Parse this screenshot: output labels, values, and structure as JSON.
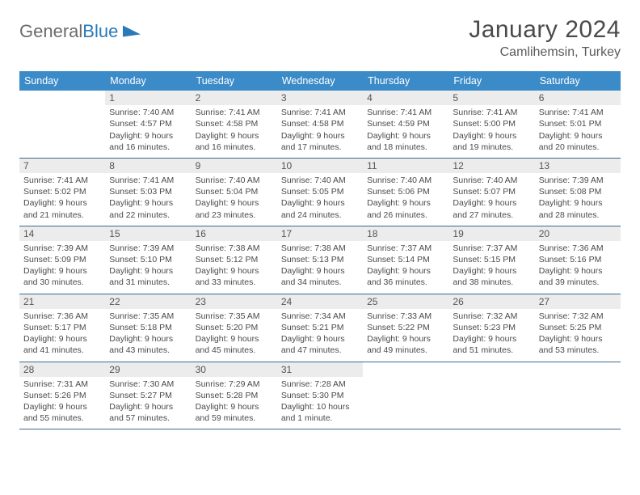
{
  "logo": {
    "word1": "General",
    "word2": "Blue"
  },
  "title": "January 2024",
  "subtitle": "Camlihemsin, Turkey",
  "colors": {
    "header_bg": "#3b8bc8",
    "header_text": "#ffffff",
    "row_border": "#3b6a8f",
    "daynum_bg": "#ececec",
    "text": "#4a4a4a",
    "logo_gray": "#6b6b6b",
    "logo_blue": "#2a7ab9"
  },
  "weekdays": [
    "Sunday",
    "Monday",
    "Tuesday",
    "Wednesday",
    "Thursday",
    "Friday",
    "Saturday"
  ],
  "weeks": [
    [
      {
        "n": "",
        "lines": []
      },
      {
        "n": "1",
        "lines": [
          "Sunrise: 7:40 AM",
          "Sunset: 4:57 PM",
          "Daylight: 9 hours and 16 minutes."
        ]
      },
      {
        "n": "2",
        "lines": [
          "Sunrise: 7:41 AM",
          "Sunset: 4:58 PM",
          "Daylight: 9 hours and 16 minutes."
        ]
      },
      {
        "n": "3",
        "lines": [
          "Sunrise: 7:41 AM",
          "Sunset: 4:58 PM",
          "Daylight: 9 hours and 17 minutes."
        ]
      },
      {
        "n": "4",
        "lines": [
          "Sunrise: 7:41 AM",
          "Sunset: 4:59 PM",
          "Daylight: 9 hours and 18 minutes."
        ]
      },
      {
        "n": "5",
        "lines": [
          "Sunrise: 7:41 AM",
          "Sunset: 5:00 PM",
          "Daylight: 9 hours and 19 minutes."
        ]
      },
      {
        "n": "6",
        "lines": [
          "Sunrise: 7:41 AM",
          "Sunset: 5:01 PM",
          "Daylight: 9 hours and 20 minutes."
        ]
      }
    ],
    [
      {
        "n": "7",
        "lines": [
          "Sunrise: 7:41 AM",
          "Sunset: 5:02 PM",
          "Daylight: 9 hours and 21 minutes."
        ]
      },
      {
        "n": "8",
        "lines": [
          "Sunrise: 7:41 AM",
          "Sunset: 5:03 PM",
          "Daylight: 9 hours and 22 minutes."
        ]
      },
      {
        "n": "9",
        "lines": [
          "Sunrise: 7:40 AM",
          "Sunset: 5:04 PM",
          "Daylight: 9 hours and 23 minutes."
        ]
      },
      {
        "n": "10",
        "lines": [
          "Sunrise: 7:40 AM",
          "Sunset: 5:05 PM",
          "Daylight: 9 hours and 24 minutes."
        ]
      },
      {
        "n": "11",
        "lines": [
          "Sunrise: 7:40 AM",
          "Sunset: 5:06 PM",
          "Daylight: 9 hours and 26 minutes."
        ]
      },
      {
        "n": "12",
        "lines": [
          "Sunrise: 7:40 AM",
          "Sunset: 5:07 PM",
          "Daylight: 9 hours and 27 minutes."
        ]
      },
      {
        "n": "13",
        "lines": [
          "Sunrise: 7:39 AM",
          "Sunset: 5:08 PM",
          "Daylight: 9 hours and 28 minutes."
        ]
      }
    ],
    [
      {
        "n": "14",
        "lines": [
          "Sunrise: 7:39 AM",
          "Sunset: 5:09 PM",
          "Daylight: 9 hours and 30 minutes."
        ]
      },
      {
        "n": "15",
        "lines": [
          "Sunrise: 7:39 AM",
          "Sunset: 5:10 PM",
          "Daylight: 9 hours and 31 minutes."
        ]
      },
      {
        "n": "16",
        "lines": [
          "Sunrise: 7:38 AM",
          "Sunset: 5:12 PM",
          "Daylight: 9 hours and 33 minutes."
        ]
      },
      {
        "n": "17",
        "lines": [
          "Sunrise: 7:38 AM",
          "Sunset: 5:13 PM",
          "Daylight: 9 hours and 34 minutes."
        ]
      },
      {
        "n": "18",
        "lines": [
          "Sunrise: 7:37 AM",
          "Sunset: 5:14 PM",
          "Daylight: 9 hours and 36 minutes."
        ]
      },
      {
        "n": "19",
        "lines": [
          "Sunrise: 7:37 AM",
          "Sunset: 5:15 PM",
          "Daylight: 9 hours and 38 minutes."
        ]
      },
      {
        "n": "20",
        "lines": [
          "Sunrise: 7:36 AM",
          "Sunset: 5:16 PM",
          "Daylight: 9 hours and 39 minutes."
        ]
      }
    ],
    [
      {
        "n": "21",
        "lines": [
          "Sunrise: 7:36 AM",
          "Sunset: 5:17 PM",
          "Daylight: 9 hours and 41 minutes."
        ]
      },
      {
        "n": "22",
        "lines": [
          "Sunrise: 7:35 AM",
          "Sunset: 5:18 PM",
          "Daylight: 9 hours and 43 minutes."
        ]
      },
      {
        "n": "23",
        "lines": [
          "Sunrise: 7:35 AM",
          "Sunset: 5:20 PM",
          "Daylight: 9 hours and 45 minutes."
        ]
      },
      {
        "n": "24",
        "lines": [
          "Sunrise: 7:34 AM",
          "Sunset: 5:21 PM",
          "Daylight: 9 hours and 47 minutes."
        ]
      },
      {
        "n": "25",
        "lines": [
          "Sunrise: 7:33 AM",
          "Sunset: 5:22 PM",
          "Daylight: 9 hours and 49 minutes."
        ]
      },
      {
        "n": "26",
        "lines": [
          "Sunrise: 7:32 AM",
          "Sunset: 5:23 PM",
          "Daylight: 9 hours and 51 minutes."
        ]
      },
      {
        "n": "27",
        "lines": [
          "Sunrise: 7:32 AM",
          "Sunset: 5:25 PM",
          "Daylight: 9 hours and 53 minutes."
        ]
      }
    ],
    [
      {
        "n": "28",
        "lines": [
          "Sunrise: 7:31 AM",
          "Sunset: 5:26 PM",
          "Daylight: 9 hours and 55 minutes."
        ]
      },
      {
        "n": "29",
        "lines": [
          "Sunrise: 7:30 AM",
          "Sunset: 5:27 PM",
          "Daylight: 9 hours and 57 minutes."
        ]
      },
      {
        "n": "30",
        "lines": [
          "Sunrise: 7:29 AM",
          "Sunset: 5:28 PM",
          "Daylight: 9 hours and 59 minutes."
        ]
      },
      {
        "n": "31",
        "lines": [
          "Sunrise: 7:28 AM",
          "Sunset: 5:30 PM",
          "Daylight: 10 hours and 1 minute."
        ]
      },
      {
        "n": "",
        "lines": []
      },
      {
        "n": "",
        "lines": []
      },
      {
        "n": "",
        "lines": []
      }
    ]
  ]
}
